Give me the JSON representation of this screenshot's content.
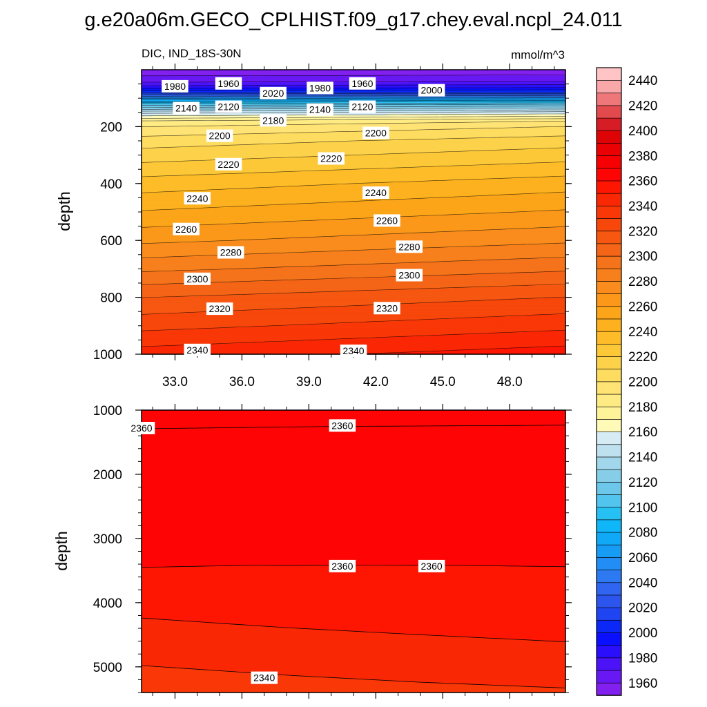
{
  "title": "g.e20a06m.GECO_CPLHIST.f09_g17.chey.eval.ncpl_24.011",
  "chart_data": {
    "type": "contour",
    "variable_label": "DIC, IND_18S-30N",
    "units_label": "mmol/m^3",
    "ylabel": "depth",
    "x_ticks": [
      "33.0",
      "36.0",
      "39.0",
      "42.0",
      "45.0",
      "48.0"
    ],
    "x_tick_values": [
      33,
      36,
      39,
      42,
      45,
      48
    ],
    "xlim": [
      31.5,
      50.5
    ],
    "upper_panel": {
      "ylim": [
        0,
        1000
      ],
      "y_ticks": [
        "200",
        "400",
        "600",
        "800",
        "1000"
      ],
      "y_tick_values": [
        200,
        400,
        600,
        800,
        1000
      ],
      "contour_labels": [
        {
          "text": "1980",
          "x": 33.0,
          "depth": 58
        },
        {
          "text": "1960",
          "x": 35.4,
          "depth": 48
        },
        {
          "text": "2020",
          "x": 37.4,
          "depth": 82
        },
        {
          "text": "1980",
          "x": 39.5,
          "depth": 64
        },
        {
          "text": "1960",
          "x": 41.4,
          "depth": 48
        },
        {
          "text": "2000",
          "x": 44.5,
          "depth": 72
        },
        {
          "text": "2140",
          "x": 33.5,
          "depth": 135
        },
        {
          "text": "2120",
          "x": 35.4,
          "depth": 130
        },
        {
          "text": "2140",
          "x": 39.5,
          "depth": 140
        },
        {
          "text": "2120",
          "x": 41.4,
          "depth": 130
        },
        {
          "text": "2180",
          "x": 37.4,
          "depth": 178
        },
        {
          "text": "2200",
          "x": 35.0,
          "depth": 232
        },
        {
          "text": "2200",
          "x": 42.0,
          "depth": 222
        },
        {
          "text": "2220",
          "x": 35.4,
          "depth": 332
        },
        {
          "text": "2220",
          "x": 40.0,
          "depth": 312
        },
        {
          "text": "2240",
          "x": 34.0,
          "depth": 452
        },
        {
          "text": "2240",
          "x": 42.0,
          "depth": 432
        },
        {
          "text": "2260",
          "x": 33.5,
          "depth": 560
        },
        {
          "text": "2260",
          "x": 42.5,
          "depth": 530
        },
        {
          "text": "2280",
          "x": 35.5,
          "depth": 642
        },
        {
          "text": "2280",
          "x": 43.5,
          "depth": 622
        },
        {
          "text": "2300",
          "x": 34.0,
          "depth": 735
        },
        {
          "text": "2300",
          "x": 43.5,
          "depth": 722
        },
        {
          "text": "2320",
          "x": 35.0,
          "depth": 840
        },
        {
          "text": "2320",
          "x": 42.5,
          "depth": 838
        },
        {
          "text": "2340",
          "x": 34.0,
          "depth": 985
        },
        {
          "text": "2340",
          "x": 41.0,
          "depth": 988
        }
      ],
      "contour_levels": [
        1960,
        1970,
        1980,
        1990,
        2000,
        2010,
        2020,
        2030,
        2040,
        2050,
        2060,
        2070,
        2080,
        2090,
        2100,
        2110,
        2120,
        2130,
        2140,
        2150,
        2160,
        2170,
        2180,
        2190,
        2200,
        2210,
        2220,
        2230,
        2240,
        2250,
        2260,
        2270,
        2280,
        2290,
        2300,
        2310,
        2320,
        2330,
        2340,
        2350
      ]
    },
    "lower_panel": {
      "ylim": [
        1000,
        5400
      ],
      "y_ticks": [
        "1000",
        "2000",
        "3000",
        "4000",
        "5000"
      ],
      "y_tick_values": [
        1000,
        2000,
        3000,
        4000,
        5000
      ],
      "contour_labels": [
        {
          "text": "2360",
          "x": 31.5,
          "depth": 1280
        },
        {
          "text": "2360",
          "x": 40.5,
          "depth": 1240
        },
        {
          "text": "2360",
          "x": 40.5,
          "depth": 3430
        },
        {
          "text": "2360",
          "x": 44.5,
          "depth": 3430
        },
        {
          "text": "2340",
          "x": 37.0,
          "depth": 5170
        }
      ],
      "contour_lines": [
        {
          "level": 2360,
          "points": [
            [
              31.5,
              1290
            ],
            [
              40,
              1255
            ],
            [
              50.5,
              1235
            ]
          ]
        },
        {
          "level": 2360,
          "points": [
            [
              31.5,
              3450
            ],
            [
              36,
              3420
            ],
            [
              42,
              3415
            ],
            [
              46,
              3420
            ],
            [
              50.5,
              3440
            ]
          ]
        },
        {
          "level": 2350,
          "points": [
            [
              31.5,
              4240
            ],
            [
              38,
              4390
            ],
            [
              44,
              4500
            ],
            [
              50.5,
              4610
            ]
          ]
        },
        {
          "level": 2340,
          "points": [
            [
              31.5,
              4980
            ],
            [
              38,
              5130
            ],
            [
              44,
              5240
            ],
            [
              50.5,
              5330
            ]
          ]
        }
      ]
    },
    "colorbar": {
      "labels": [
        "1960",
        "1980",
        "2000",
        "2020",
        "2040",
        "2060",
        "2080",
        "2100",
        "2120",
        "2140",
        "2160",
        "2180",
        "2200",
        "2220",
        "2240",
        "2260",
        "2280",
        "2300",
        "2320",
        "2340",
        "2360",
        "2380",
        "2400",
        "2420",
        "2440"
      ],
      "min": 1950,
      "step": 10,
      "colors": [
        "#8120ef",
        "#6818f3",
        "#4d13f8",
        "#2a0efc",
        "#0a10fe",
        "#0b28f7",
        "#1f44f1",
        "#2c55ee",
        "#2f65f0",
        "#2d79f2",
        "#218df5",
        "#179cf6",
        "#10a9f8",
        "#0fb6f8",
        "#26c0f3",
        "#51c5ee",
        "#6cc7ea",
        "#86cde7",
        "#a2d6ea",
        "#bfe1ef",
        "#d6ecf4",
        "#fffab7",
        "#fff39a",
        "#ffeb83",
        "#ffe374",
        "#fedc60",
        "#fdd24b",
        "#fdc838",
        "#fdbc28",
        "#fdb11e",
        "#fca519",
        "#fb981a",
        "#f98c1c",
        "#f7801d",
        "#f5731a",
        "#f56517",
        "#f65711",
        "#f7470b",
        "#f93707",
        "#fa2704",
        "#fe1602",
        "#ff0404",
        "#f60003",
        "#e90104",
        "#de0406",
        "#d61c25",
        "#e24a4d",
        "#ee7779",
        "#f9a7a8",
        "#ffc4c6"
      ]
    }
  }
}
